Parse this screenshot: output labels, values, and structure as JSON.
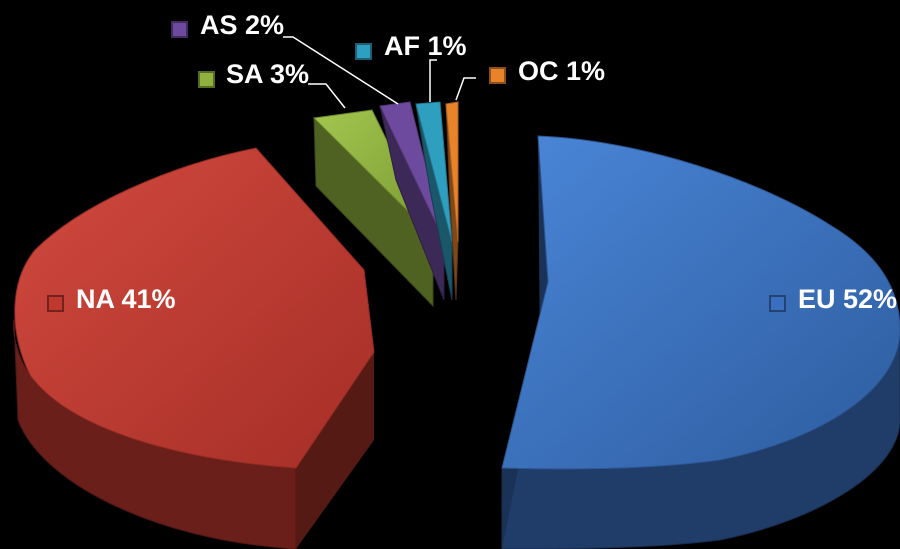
{
  "chart_data": {
    "type": "pie",
    "style": "3d-exploded",
    "slices": [
      {
        "label": "EU",
        "value": 52,
        "display": "EU 52%",
        "color": "#3a6fbf",
        "icon": "blue-square-marker-icon"
      },
      {
        "label": "NA",
        "value": 41,
        "display": "NA 41%",
        "color": "#c0392f",
        "icon": "red-square-marker-icon"
      },
      {
        "label": "SA",
        "value": 3,
        "display": "SA 3%",
        "color": "#8fb23e",
        "icon": "green-square-marker-icon"
      },
      {
        "label": "AS",
        "value": 2,
        "display": "AS 2%",
        "color": "#6e4a9e",
        "icon": "purple-square-marker-icon"
      },
      {
        "label": "AF",
        "value": 1,
        "display": "AF 1%",
        "color": "#2f9fc0",
        "icon": "teal-square-marker-icon"
      },
      {
        "label": "OC",
        "value": 1,
        "display": "OC 1%",
        "color": "#e8832a",
        "icon": "orange-square-marker-icon"
      }
    ],
    "legend": "inline-labels",
    "background": "#000000"
  }
}
